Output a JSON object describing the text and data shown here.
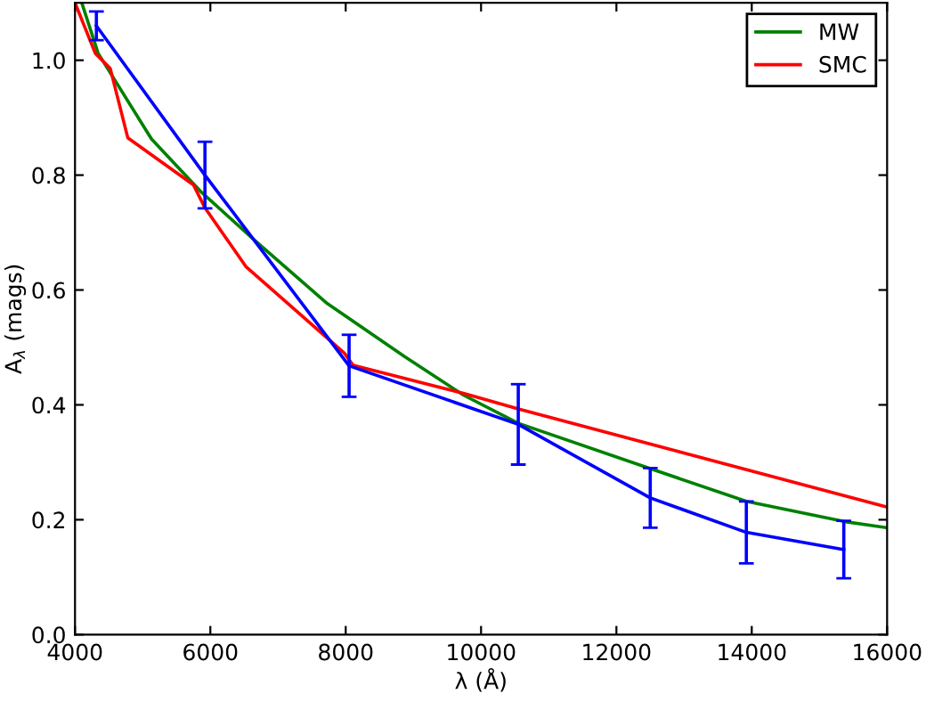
{
  "chart_data": {
    "type": "line",
    "xlabel": "λ (Å)",
    "ylabel": "A$_{λ}$ (mags)",
    "series": [
      {
        "name": "MW",
        "color": "#008000",
        "x": [
          4100,
          4342,
          5130,
          5870,
          6660,
          7710,
          8870,
          9740,
          10550,
          12500,
          13920,
          15360,
          16000
        ],
        "values": [
          1.1,
          1.012,
          0.863,
          0.77,
          0.686,
          0.578,
          0.484,
          0.417,
          0.368,
          0.289,
          0.232,
          0.197,
          0.186
        ]
      },
      {
        "name": "SMC",
        "color": "#ff0000",
        "x": [
          4000,
          4300,
          4520,
          4780,
          5750,
          5920,
          6530,
          7980,
          8110,
          9740,
          10550,
          16000
        ],
        "values": [
          1.1,
          1.012,
          0.986,
          0.865,
          0.783,
          0.743,
          0.64,
          0.49,
          0.469,
          0.42,
          0.393,
          0.222
        ]
      },
      {
        "color": "#0000ff",
        "x": [
          4316,
          5920,
          8050,
          10550,
          12500,
          13920,
          15360
        ],
        "values": [
          1.06,
          0.8,
          0.468,
          0.366,
          0.238,
          0.178,
          0.148
        ],
        "errors": [
          0.025,
          0.058,
          0.054,
          0.07,
          0.052,
          0.054,
          0.05
        ]
      }
    ],
    "xlim": [
      4000,
      16000
    ],
    "ylim": [
      0,
      1.1
    ],
    "xticks": [
      4000,
      6000,
      8000,
      10000,
      12000,
      14000,
      16000
    ],
    "yticks": [
      {
        "value": 0,
        "label": "0.0"
      },
      {
        "value": 0.2,
        "label": "0.2"
      },
      {
        "value": 0.4,
        "label": "0.4"
      },
      {
        "value": 0.6,
        "label": "0.6"
      },
      {
        "value": 0.8,
        "label": "0.8"
      },
      {
        "value": 1.0,
        "label": "1.0"
      }
    ],
    "legend": "top right",
    "grid": false,
    "marker": "none",
    "line_style": "solid"
  }
}
